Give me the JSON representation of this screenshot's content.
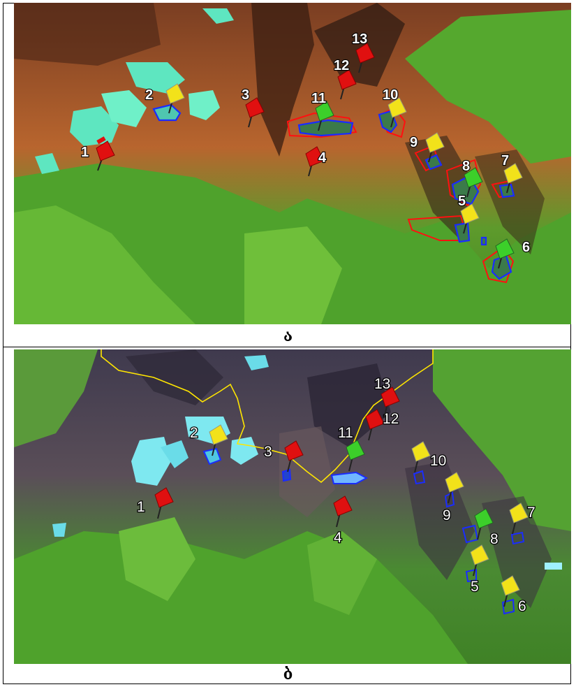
{
  "figure": {
    "caption_a": "ა",
    "caption_b": "ბ"
  },
  "panel_a": {
    "markers": [
      {
        "label": "1",
        "color": "red"
      },
      {
        "label": "2",
        "color": "yellow"
      },
      {
        "label": "3",
        "color": "red"
      },
      {
        "label": "4",
        "color": "red"
      },
      {
        "label": "5",
        "color": "yellow"
      },
      {
        "label": "6",
        "color": "green"
      },
      {
        "label": "7",
        "color": "yellow"
      },
      {
        "label": "8",
        "color": "green"
      },
      {
        "label": "9",
        "color": "yellow"
      },
      {
        "label": "10",
        "color": "yellow"
      },
      {
        "label": "11",
        "color": "green"
      },
      {
        "label": "12",
        "color": "red"
      },
      {
        "label": "13",
        "color": "red"
      }
    ],
    "outline_colors": {
      "blue": "#1a2cff",
      "red": "#ff1010"
    }
  },
  "panel_b": {
    "markers": [
      {
        "label": "1",
        "color": "red"
      },
      {
        "label": "2",
        "color": "yellow"
      },
      {
        "label": "3",
        "color": "red"
      },
      {
        "label": "4",
        "color": "red"
      },
      {
        "label": "5",
        "color": "yellow"
      },
      {
        "label": "6",
        "color": "yellow"
      },
      {
        "label": "7",
        "color": "yellow"
      },
      {
        "label": "8",
        "color": "green"
      },
      {
        "label": "9",
        "color": "yellow"
      },
      {
        "label": "10",
        "color": "yellow"
      },
      {
        "label": "11",
        "color": "green"
      },
      {
        "label": "12",
        "color": "red"
      },
      {
        "label": "13",
        "color": "red"
      }
    ],
    "boundary_color": "#ffe600"
  },
  "pin_colors": {
    "red": "#e01010",
    "yellow": "#f2e21a",
    "green": "#3ccf2a"
  }
}
